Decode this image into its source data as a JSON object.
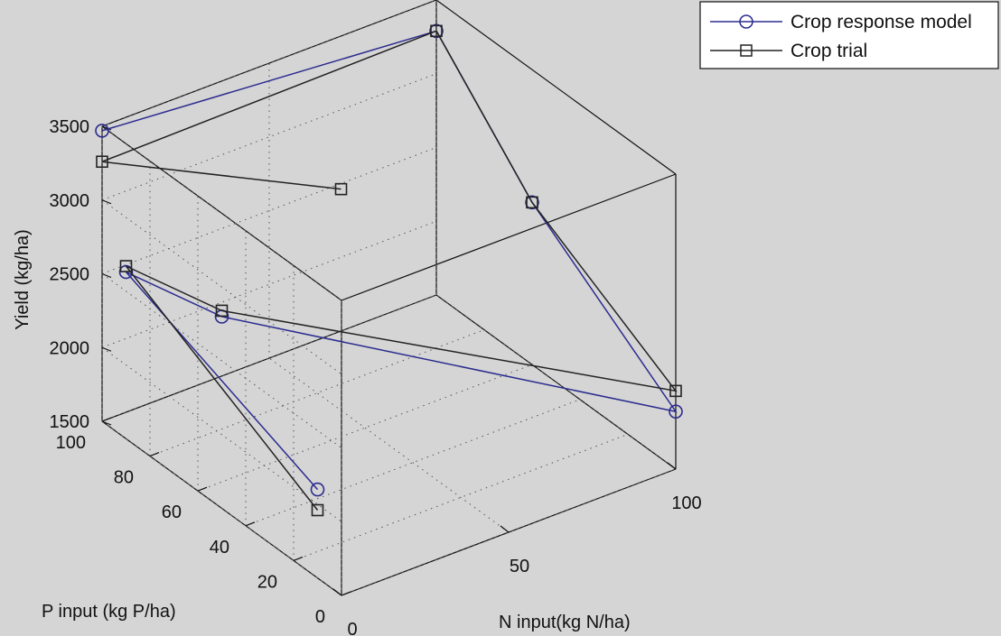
{
  "chart_data": {
    "type": "line",
    "projection": "3d",
    "xlabel": "N input(kg N/ha)",
    "ylabel": "P input (kg P/ha)",
    "zlabel": "Yield (kg/ha)",
    "xlim": [
      0,
      100
    ],
    "ylim": [
      0,
      100
    ],
    "zlim": [
      1500,
      3500
    ],
    "x_ticks": [
      0,
      50,
      100
    ],
    "y_ticks": [
      0,
      20,
      40,
      60,
      80,
      100
    ],
    "z_ticks": [
      1500,
      2000,
      2500,
      3000,
      3500
    ],
    "grid": true,
    "legend_position": "top-right",
    "series": [
      {
        "name": "Crop response model",
        "color": "#2b2b8f",
        "marker": "circle",
        "points": [
          {
            "x": 0,
            "y": 10,
            "z": 2100
          },
          {
            "x": 0,
            "y": 90,
            "z": 2630
          },
          {
            "x": 0,
            "y": 50,
            "z": 2800
          },
          {
            "x": 100,
            "y": 0,
            "z": 1890
          },
          {
            "x": 100,
            "y": 60,
            "z": 2600
          },
          {
            "x": 100,
            "y": 100,
            "z": 3290
          },
          {
            "x": 0,
            "y": 100,
            "z": 3470
          }
        ]
      },
      {
        "name": "Crop trial",
        "color": "#222222",
        "marker": "square",
        "points": [
          {
            "x": 0,
            "y": 10,
            "z": 1960
          },
          {
            "x": 0,
            "y": 90,
            "z": 2670
          },
          {
            "x": 0,
            "y": 50,
            "z": 2840
          },
          {
            "x": 100,
            "y": 0,
            "z": 2030
          },
          {
            "x": 100,
            "y": 60,
            "z": 2600
          },
          {
            "x": 100,
            "y": 100,
            "z": 3290
          },
          {
            "x": 0,
            "y": 100,
            "z": 3260
          },
          {
            "x": 50,
            "y": 70,
            "z": 3000
          }
        ]
      }
    ]
  }
}
